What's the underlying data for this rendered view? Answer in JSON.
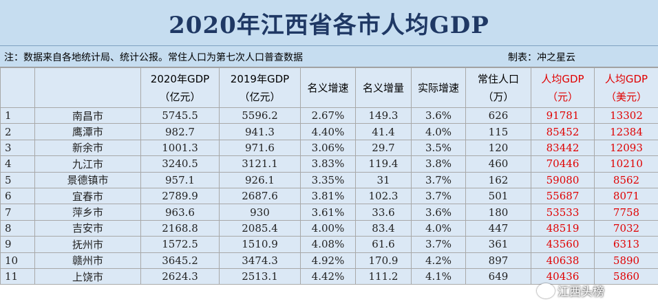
{
  "title": "2020年江西省各市人均GDP",
  "note": "注：数据来自各地统计局、统计公报。常住人口为第七次人口普查数据",
  "maker": "制表：冲之星云",
  "headers": [
    {
      "l1": "",
      "l2": ""
    },
    {
      "l1": "",
      "l2": ""
    },
    {
      "l1": "2020年GDP",
      "l2": "（亿元）"
    },
    {
      "l1": "2019年GDP",
      "l2": "（亿元）"
    },
    {
      "l1": "名义增速",
      "l2": ""
    },
    {
      "l1": "名义增量",
      "l2": ""
    },
    {
      "l1": "实际增速",
      "l2": ""
    },
    {
      "l1": "常住人口",
      "l2": "（万）"
    },
    {
      "l1": "人均GDP",
      "l2": "（元）"
    },
    {
      "l1": "人均GDP",
      "l2": "（美元）"
    }
  ],
  "rows": [
    [
      "1",
      "南昌市",
      "5745.5",
      "5596.2",
      "2.67%",
      "149.3",
      "3.6%",
      "626",
      "91781",
      "13302"
    ],
    [
      "2",
      "鹰潭市",
      "982.7",
      "941.3",
      "4.40%",
      "41.4",
      "4.0%",
      "115",
      "85452",
      "12384"
    ],
    [
      "3",
      "新余市",
      "1001.3",
      "971.6",
      "3.06%",
      "29.7",
      "3.5%",
      "120",
      "83442",
      "12093"
    ],
    [
      "4",
      "九江市",
      "3240.5",
      "3121.1",
      "3.83%",
      "119.4",
      "3.8%",
      "460",
      "70446",
      "10210"
    ],
    [
      "5",
      "景德镇市",
      "957.1",
      "926.1",
      "3.35%",
      "31",
      "3.7%",
      "162",
      "59080",
      "8562"
    ],
    [
      "6",
      "宜春市",
      "2789.9",
      "2687.6",
      "3.81%",
      "102.3",
      "3.7%",
      "501",
      "55687",
      "8071"
    ],
    [
      "7",
      "萍乡市",
      "963.6",
      "930",
      "3.61%",
      "33.6",
      "3.6%",
      "180",
      "53533",
      "7758"
    ],
    [
      "8",
      "吉安市",
      "2168.8",
      "2085.4",
      "4.00%",
      "83.4",
      "4.0%",
      "447",
      "48519",
      "7032"
    ],
    [
      "9",
      "抚州市",
      "1572.5",
      "1510.9",
      "4.08%",
      "61.6",
      "3.7%",
      "361",
      "43560",
      "6313"
    ],
    [
      "10",
      "赣州市",
      "3645.2",
      "3474.3",
      "4.92%",
      "170.9",
      "4.2%",
      "897",
      "40638",
      "5890"
    ],
    [
      "11",
      "上饶市",
      "2624.3",
      "2513.1",
      "4.42%",
      "111.2",
      "4.1%",
      "649",
      "40436",
      "5860"
    ]
  ],
  "watermark": "江西头榜",
  "colors": {
    "header_bg": "#c6ddf0",
    "cell_bg": "#dbe8f5",
    "title": "#1f3864",
    "highlight": "#e00000"
  }
}
